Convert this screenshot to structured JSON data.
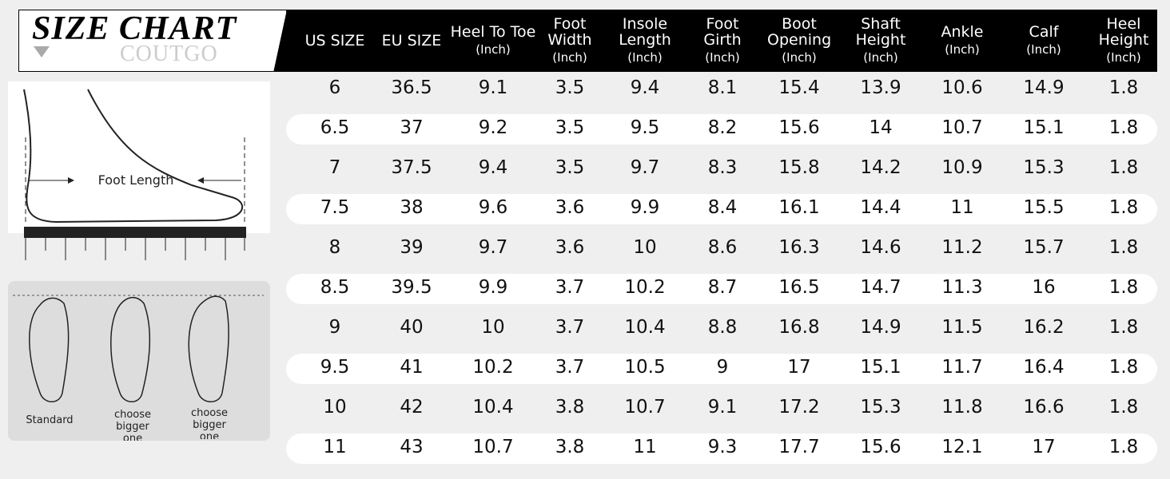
{
  "header": {
    "title": "SIZE CHART",
    "brand": "COUTGO"
  },
  "illustrations": {
    "measure_label": "Foot Length",
    "feet": [
      "Standard",
      "choose bigger one",
      "choose bigger one"
    ]
  },
  "table": {
    "columns": [
      {
        "name": "US SIZE",
        "unit": null
      },
      {
        "name": "EU SIZE",
        "unit": null
      },
      {
        "name": "Heel To Toe",
        "unit": "(Inch)"
      },
      {
        "name": "Foot Width",
        "unit": "(Inch)"
      },
      {
        "name": "Insole Length",
        "unit": "(Inch)"
      },
      {
        "name": "Foot Girth",
        "unit": "(Inch)"
      },
      {
        "name": "Boot Opening",
        "unit": "(Inch)"
      },
      {
        "name": "Shaft Height",
        "unit": "(Inch)"
      },
      {
        "name": "Ankle",
        "unit": "(Inch)"
      },
      {
        "name": "Calf",
        "unit": "(Inch)"
      },
      {
        "name": "Heel Height",
        "unit": "(Inch)"
      }
    ],
    "rows": [
      [
        6,
        36.5,
        9.1,
        3.5,
        9.4,
        8.1,
        15.4,
        13.9,
        10.6,
        14.9,
        1.8
      ],
      [
        6.5,
        37,
        9.2,
        3.5,
        9.5,
        8.2,
        15.6,
        14,
        10.7,
        15.1,
        1.8
      ],
      [
        7,
        37.5,
        9.4,
        3.5,
        9.7,
        8.3,
        15.8,
        14.2,
        10.9,
        15.3,
        1.8
      ],
      [
        7.5,
        38,
        9.6,
        3.6,
        9.9,
        8.4,
        16.1,
        14.4,
        11,
        15.5,
        1.8
      ],
      [
        8,
        39,
        9.7,
        3.6,
        10,
        8.6,
        16.3,
        14.6,
        11.2,
        15.7,
        1.8
      ],
      [
        8.5,
        39.5,
        9.9,
        3.7,
        10.2,
        8.7,
        16.5,
        14.7,
        11.3,
        16,
        1.8
      ],
      [
        9,
        40,
        10,
        3.7,
        10.4,
        8.8,
        16.8,
        14.9,
        11.5,
        16.2,
        1.8
      ],
      [
        9.5,
        41,
        10.2,
        3.7,
        10.5,
        9,
        17,
        15.1,
        11.7,
        16.4,
        1.8
      ],
      [
        10,
        42,
        10.4,
        3.8,
        10.7,
        9.1,
        17.2,
        15.3,
        11.8,
        16.6,
        1.8
      ],
      [
        11,
        43,
        10.7,
        3.8,
        11,
        9.3,
        17.7,
        15.6,
        12.1,
        17,
        1.8
      ]
    ]
  }
}
